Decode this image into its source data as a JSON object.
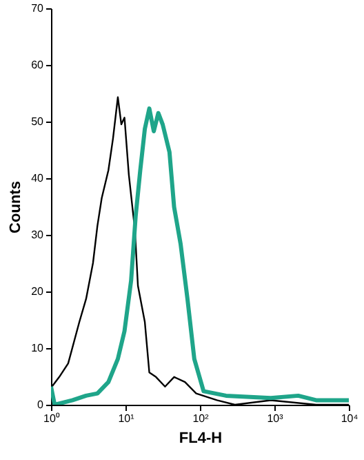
{
  "chart_data": {
    "type": "line",
    "xlabel": "FL4-H",
    "ylabel": "Counts",
    "log": "x",
    "xlim": [
      1,
      10000
    ],
    "ylim": [
      0,
      70
    ],
    "xticks": [
      {
        "value": 1,
        "label": "10⁰"
      },
      {
        "value": 10,
        "label": "10¹"
      },
      {
        "value": 100,
        "label": "10²"
      },
      {
        "value": 1000,
        "label": "10³"
      },
      {
        "value": 10000,
        "label": "10⁴"
      }
    ],
    "yticks": [
      0,
      10,
      20,
      30,
      40,
      50,
      60,
      70
    ],
    "grid": false,
    "series": [
      {
        "color": "#000000",
        "x": [
          1,
          1,
          1.29,
          1.7,
          2.4,
          2.96,
          3.66,
          4.2,
          4.8,
          5.9,
          6.8,
          7.9,
          8.8,
          9.7,
          11.1,
          13.4,
          14.7,
          18.2,
          20.9,
          25.7,
          34,
          45,
          63,
          89,
          169,
          295,
          895,
          3630,
          10000
        ],
        "values": [
          37,
          3,
          4.9,
          7.3,
          14.6,
          18.7,
          25,
          31.6,
          36.5,
          41.4,
          47,
          54.3,
          49.5,
          50.7,
          40.6,
          30.8,
          21,
          14.6,
          5.7,
          4.9,
          3.2,
          4.9,
          4,
          2,
          0.8,
          0,
          0.8,
          0,
          0
        ]
      },
      {
        "color": "#1fa58a",
        "x": [
          1,
          1.12,
          1.95,
          2.96,
          4.2,
          5.9,
          7.9,
          9.7,
          11.9,
          13.7,
          15.8,
          18.2,
          20.9,
          24,
          27.6,
          31.6,
          39,
          45,
          55,
          68,
          84,
          112,
          224,
          895,
          2090,
          3630,
          10000
        ],
        "values": [
          3.2,
          0,
          0.8,
          1.6,
          2,
          4,
          8.1,
          13,
          21.9,
          33.3,
          41.4,
          48.7,
          52.3,
          48.3,
          51.5,
          49.5,
          44.6,
          34.9,
          28.4,
          18.7,
          8.1,
          2.4,
          1.6,
          1.2,
          1.6,
          0.8,
          0.8
        ]
      }
    ]
  }
}
